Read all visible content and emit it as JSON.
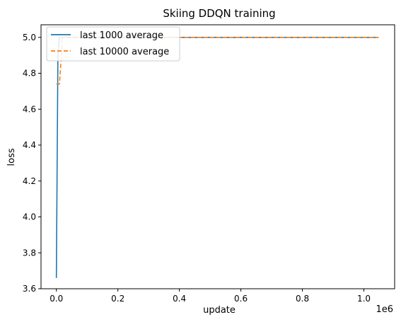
{
  "chart_data": {
    "type": "line",
    "title": "Skiing DDQN training",
    "xlabel": "update",
    "ylabel": "loss",
    "x_offset_text": "1e6",
    "xlim": [
      -50000,
      1100000
    ],
    "ylim": [
      3.6,
      5.07
    ],
    "x_ticks": [
      0,
      200000,
      400000,
      600000,
      800000,
      1000000
    ],
    "x_tick_labels": [
      "0.0",
      "0.2",
      "0.4",
      "0.6",
      "0.8",
      "1.0"
    ],
    "y_ticks": [
      3.6,
      3.8,
      4.0,
      4.2,
      4.4,
      4.6,
      4.8,
      5.0
    ],
    "y_tick_labels": [
      "3.6",
      "3.8",
      "4.0",
      "4.2",
      "4.4",
      "4.6",
      "4.8",
      "5.0"
    ],
    "grid": false,
    "legend_position": "top-left",
    "series": [
      {
        "name": "last 1000 average",
        "color": "#1f77b4",
        "linestyle": "solid",
        "x": [
          0,
          5000,
          10000,
          1048000
        ],
        "y": [
          3.66,
          4.92,
          5.0,
          5.0
        ]
      },
      {
        "name": "last 10000 average",
        "color": "#ff7f0e",
        "linestyle": "dashed",
        "x": [
          0,
          10000,
          20000,
          1048000
        ],
        "y": [
          4.74,
          4.74,
          5.0,
          5.0
        ]
      }
    ]
  }
}
